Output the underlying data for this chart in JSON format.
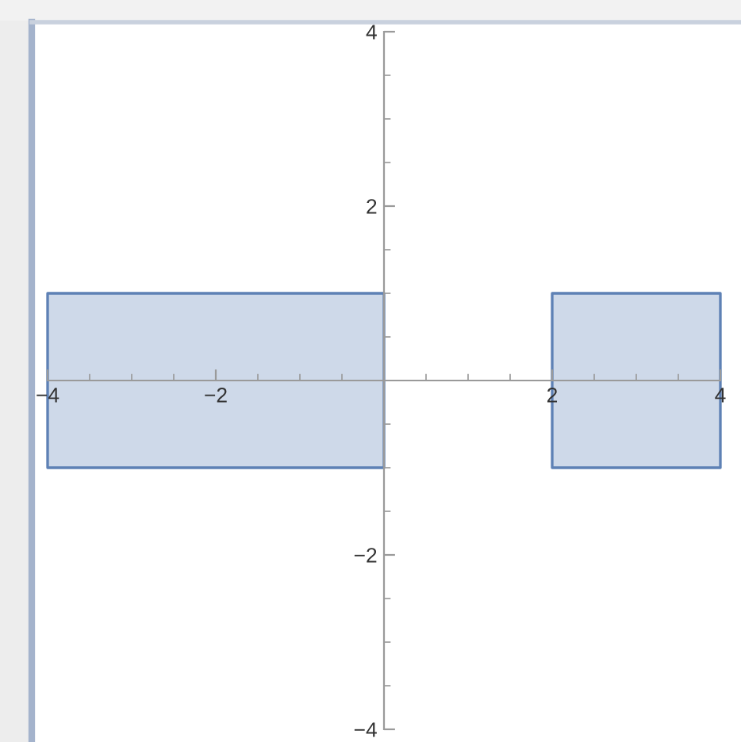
{
  "chart_data": {
    "type": "area",
    "series": [
      {
        "x": [
          -4,
          0,
          0,
          -4
        ],
        "values": [
          1,
          1,
          -1,
          -1
        ],
        "color": "#5e81b5"
      },
      {
        "x": [
          2,
          4,
          4,
          2
        ],
        "values": [
          1,
          1,
          -1,
          -1
        ],
        "color": "#5e81b5"
      }
    ],
    "xlim": [
      -4,
      4
    ],
    "ylim": [
      -4,
      4
    ],
    "xticks": [
      {
        "value": -4,
        "label": "−4"
      },
      {
        "value": -3.5,
        "label": null
      },
      {
        "value": -3,
        "label": null
      },
      {
        "value": -2.5,
        "label": null
      },
      {
        "value": -2,
        "label": "−2"
      },
      {
        "value": -1.5,
        "label": null
      },
      {
        "value": -1,
        "label": null
      },
      {
        "value": -0.5,
        "label": null
      },
      {
        "value": 0.5,
        "label": null
      },
      {
        "value": 1,
        "label": null
      },
      {
        "value": 1.5,
        "label": null
      },
      {
        "value": 2,
        "label": "2"
      },
      {
        "value": 2.5,
        "label": null
      },
      {
        "value": 3,
        "label": null
      },
      {
        "value": 3.5,
        "label": null
      },
      {
        "value": 4,
        "label": "4"
      }
    ],
    "yticks": [
      {
        "value": -4,
        "label": "−4"
      },
      {
        "value": -3.5,
        "label": null
      },
      {
        "value": -3,
        "label": null
      },
      {
        "value": -2.5,
        "label": null
      },
      {
        "value": -2,
        "label": "−2"
      },
      {
        "value": -1.5,
        "label": null
      },
      {
        "value": -1,
        "label": null
      },
      {
        "value": -0.5,
        "label": null
      },
      {
        "value": 0.5,
        "label": null
      },
      {
        "value": 1,
        "label": null
      },
      {
        "value": 1.5,
        "label": null
      },
      {
        "value": 2,
        "label": "2"
      },
      {
        "value": 2.5,
        "label": null
      },
      {
        "value": 3,
        "label": null
      },
      {
        "value": 3.5,
        "label": null
      },
      {
        "value": 4,
        "label": "4"
      }
    ]
  }
}
